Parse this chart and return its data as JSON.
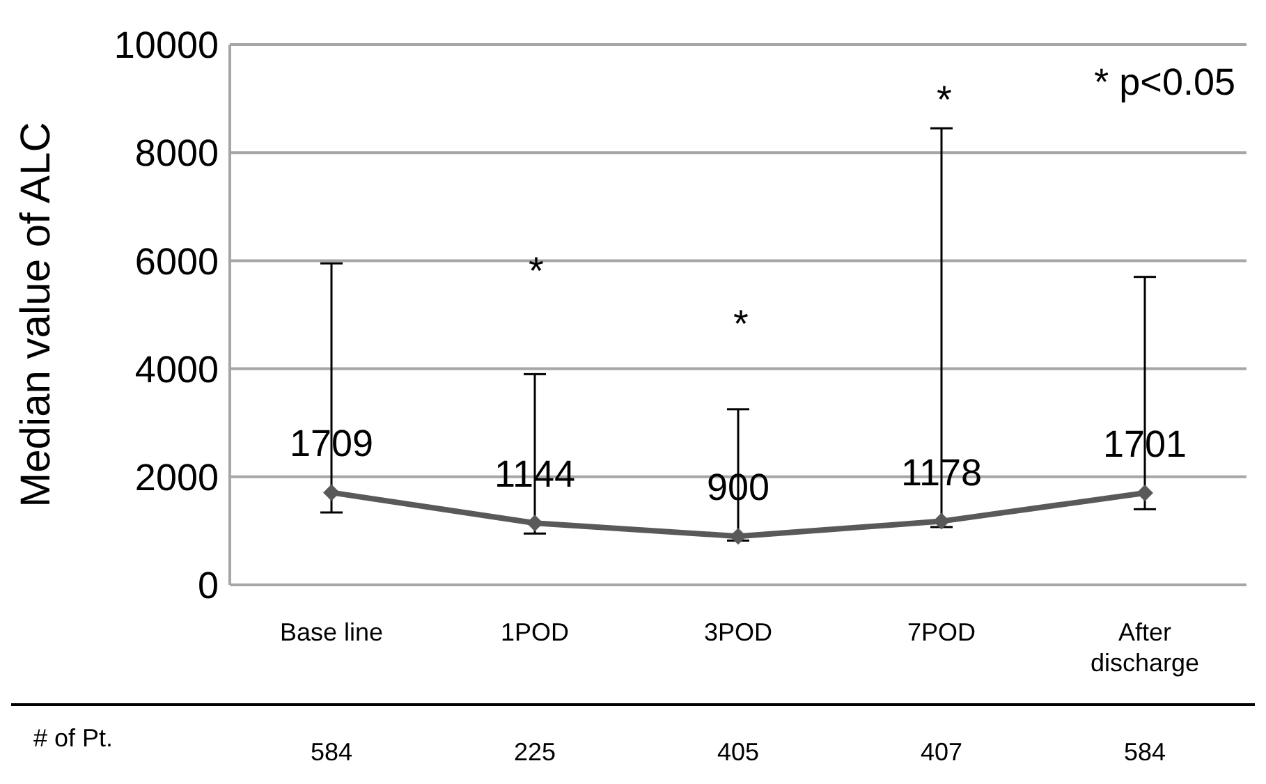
{
  "chart_data": {
    "type": "line",
    "ylabel": "Median value of ALC",
    "categories": [
      "Base line",
      "1POD",
      "3POD",
      "7POD",
      "After discharge"
    ],
    "series": [
      {
        "color": "#595959",
        "values": [
          1709,
          1144,
          900,
          1178,
          1701
        ],
        "errors": [
          [
            1340,
            5950
          ],
          [
            950,
            3900
          ],
          [
            820,
            3250
          ],
          [
            1070,
            8450
          ],
          [
            1400,
            5700
          ]
        ]
      }
    ],
    "ylim": [
      0,
      10000
    ],
    "yticks": [
      0,
      2000,
      4000,
      6000,
      8000,
      10000
    ],
    "grid": "y",
    "marker": "diamond",
    "line_style": "solid",
    "data_labels": true,
    "legend": false,
    "annotations": [
      "* p<0.05",
      "# of Pt.",
      "*",
      "*",
      "*",
      "584",
      "225",
      "405",
      "407",
      "584"
    ]
  }
}
